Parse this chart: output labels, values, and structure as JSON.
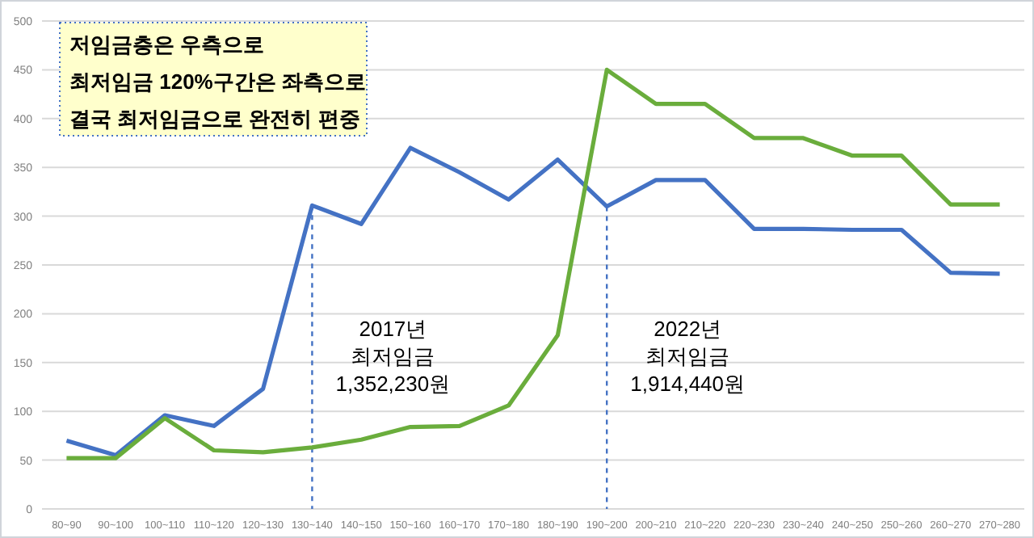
{
  "chart_data": {
    "type": "line",
    "categories": [
      "80~90",
      "90~100",
      "100~110",
      "110~120",
      "120~130",
      "130~140",
      "140~150",
      "150~160",
      "160~170",
      "170~180",
      "180~190",
      "190~200",
      "200~210",
      "210~220",
      "220~230",
      "230~240",
      "240~250",
      "250~260",
      "260~270",
      "270~280"
    ],
    "series": [
      {
        "color": "#4472c4",
        "values": [
          70,
          55,
          96,
          85,
          123,
          311,
          292,
          370,
          345,
          317,
          358,
          310,
          337,
          337,
          287,
          287,
          286,
          286,
          242,
          241
        ]
      },
      {
        "color": "#6aad3c",
        "values": [
          52,
          52,
          93,
          60,
          58,
          63,
          71,
          84,
          85,
          106,
          178,
          450,
          415,
          415,
          380,
          380,
          362,
          362,
          312,
          312
        ]
      }
    ],
    "ylim": [
      0,
      500
    ],
    "yticks": [
      0,
      50,
      100,
      150,
      200,
      250,
      300,
      350,
      400,
      450,
      500
    ],
    "grid": "y",
    "marker": "none",
    "line_style": "solid",
    "ref_lines": [
      {
        "axis": "x",
        "value": "130~140",
        "label": "2017년\n최저임금\n1,352,230원",
        "color": "#4472c4",
        "line_style": "dashed"
      },
      {
        "axis": "x",
        "value": "190~200",
        "label": "2022년\n최저임금\n1,914,440원",
        "color": "#4472c4",
        "line_style": "dashed"
      }
    ],
    "annotations": [
      "저임금층은 우측으로\n최저임금 120%구간은 좌측으로\n결국 최저임금으로 완전히 편중"
    ]
  }
}
